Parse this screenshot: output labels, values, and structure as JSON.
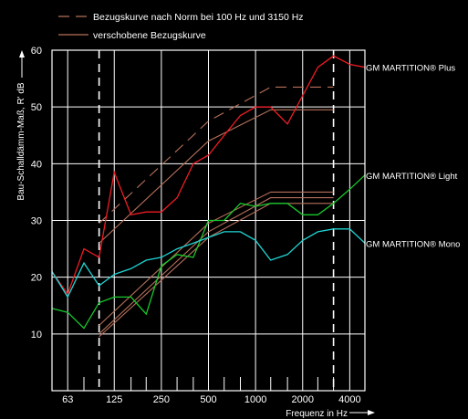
{
  "chart_data": {
    "type": "line",
    "xlabel": "Frequenz in Hz",
    "ylabel": "Bau-Schalldämm-Maß, R' dB",
    "x_scale": "log",
    "xlim": [
      50,
      5000
    ],
    "ylim": [
      0,
      60
    ],
    "y_ticks": [
      10,
      20,
      30,
      40,
      50,
      60
    ],
    "x_tick_labels": [
      {
        "f": 63,
        "label": "63"
      },
      {
        "f": 125,
        "label": "125"
      },
      {
        "f": 250,
        "label": "250"
      },
      {
        "f": 500,
        "label": "500"
      },
      {
        "f": 1000,
        "label": "1000"
      },
      {
        "f": 2000,
        "label": "2000"
      },
      {
        "f": 4000,
        "label": "4000"
      }
    ],
    "grid_x": [
      63,
      125,
      250,
      500,
      1000,
      2000,
      4000
    ],
    "minor_ticks_x": [
      80,
      160,
      200,
      315,
      400,
      630,
      800,
      1250,
      1600,
      2500,
      3150
    ],
    "dashed_markers_x": [
      100,
      3150
    ],
    "grid": true,
    "legend": [
      {
        "label": "Bezugskurve nach Norm bei 100 Hz und 3150 Hz",
        "style": "dashed",
        "color": "#b5705a"
      },
      {
        "label": "verschobene Bezugskurve",
        "style": "solid",
        "color": "#b5705a"
      }
    ],
    "series": [
      {
        "name": "GM MARTITION® Plus",
        "color": "#ee1c24",
        "x": [
          50,
          63,
          80,
          100,
          125,
          160,
          200,
          250,
          315,
          400,
          500,
          630,
          800,
          1000,
          1250,
          1600,
          2000,
          2500,
          3150,
          4000,
          5000
        ],
        "values": [
          21,
          17,
          25,
          23.5,
          38.5,
          31,
          31.5,
          31.5,
          34,
          40,
          41.5,
          45,
          48.5,
          50,
          50,
          47,
          52,
          57,
          59,
          57.5,
          57
        ]
      },
      {
        "name": "GM MARTITION® Light",
        "color": "#17c82c",
        "x": [
          50,
          63,
          80,
          100,
          125,
          160,
          200,
          250,
          315,
          400,
          500,
          630,
          800,
          1000,
          1250,
          1600,
          2000,
          2500,
          3150,
          4000,
          5000
        ],
        "values": [
          14.5,
          13.8,
          11,
          15.5,
          16.5,
          16.5,
          13.5,
          22,
          24,
          23.5,
          30,
          30,
          33,
          32.5,
          33,
          33,
          31,
          31,
          33,
          35.5,
          38
        ]
      },
      {
        "name": "GM MARTITION® Mono",
        "color": "#1fd4d4",
        "x": [
          50,
          63,
          80,
          100,
          125,
          160,
          200,
          250,
          315,
          400,
          500,
          630,
          800,
          1000,
          1250,
          1600,
          2000,
          2500,
          3150,
          4000,
          5000
        ],
        "values": [
          21,
          16.5,
          22.5,
          18.5,
          20.5,
          21.5,
          23,
          23.5,
          25,
          26,
          27,
          28,
          28,
          26.5,
          23,
          24,
          26.5,
          28,
          28.5,
          28.5,
          26
        ]
      }
    ],
    "reference_curves": [
      {
        "style": "dashed",
        "x": [
          100,
          500,
          1250,
          3150
        ],
        "values": [
          29.5,
          47.5,
          53.5,
          53.5
        ]
      },
      {
        "style": "solid",
        "x": [
          100,
          500,
          1250,
          3150
        ],
        "values": [
          26,
          44,
          49.5,
          49.5
        ]
      },
      {
        "style": "solid",
        "x": [
          100,
          500,
          1250,
          3150
        ],
        "values": [
          11.5,
          29.5,
          35,
          35
        ]
      },
      {
        "style": "solid",
        "x": [
          100,
          500,
          1250,
          3150
        ],
        "values": [
          10,
          28,
          34,
          34
        ]
      },
      {
        "style": "solid",
        "x": [
          100,
          500,
          1250,
          3150
        ],
        "values": [
          9.5,
          27,
          33,
          33
        ]
      }
    ]
  }
}
